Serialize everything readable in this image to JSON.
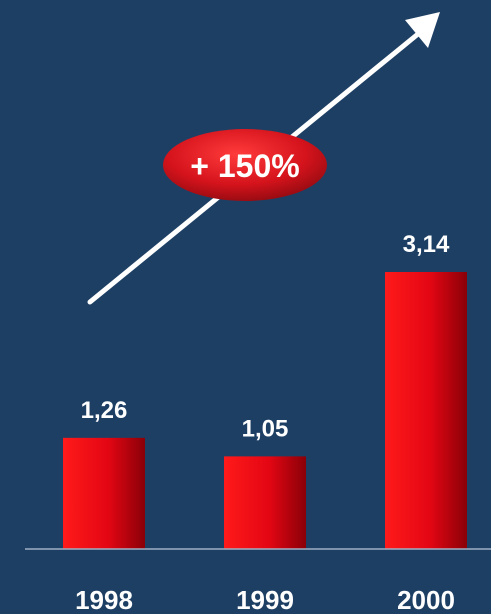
{
  "chart_data": {
    "type": "bar",
    "categories": [
      "1998",
      "1999",
      "2000"
    ],
    "values": [
      1.26,
      1.05,
      3.14
    ],
    "value_labels": [
      "1,26",
      "1,05",
      "3,14"
    ],
    "title": "",
    "xlabel": "",
    "ylabel": "",
    "ylim": [
      0,
      3.14
    ],
    "grid": false,
    "legend": "none",
    "annotation": {
      "text": "+ 150%",
      "shape": "ellipse-on-up-arrow"
    },
    "colors": {
      "background": "#1e3f64",
      "bar": "#e30613",
      "bar_dark": "#8a0008",
      "axis": "#9fb0c4",
      "text": "#ffffff",
      "arrow": "#ffffff",
      "badge": "#d5131c"
    }
  }
}
